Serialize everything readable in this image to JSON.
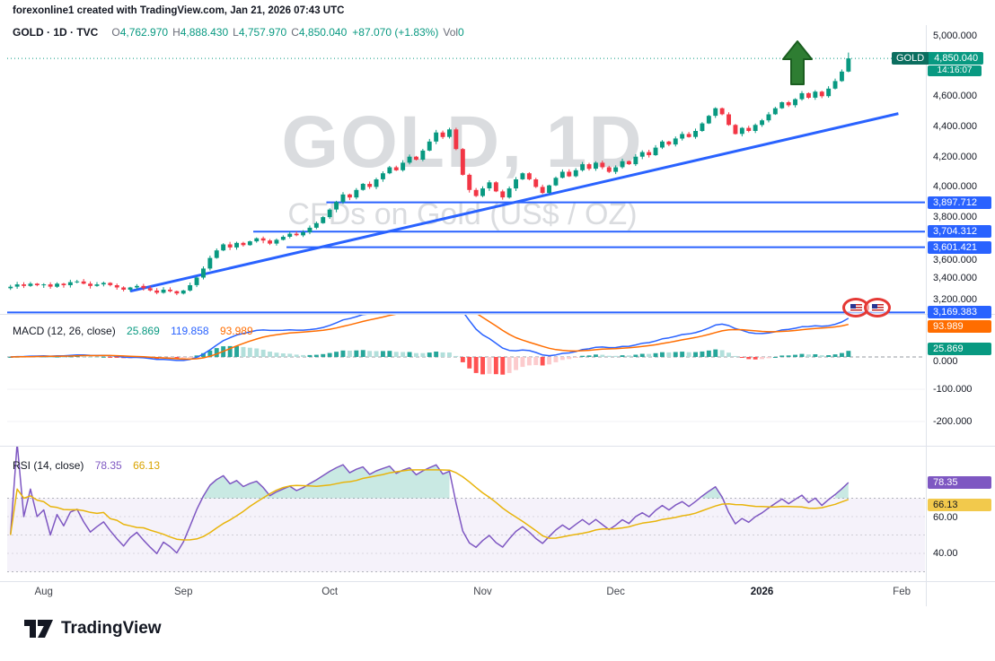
{
  "attribution": "forexonline1 created with TradingView.com, Jan 21, 2026 07:43 UTC",
  "legend": {
    "symbol_title": "GOLD · 1D · TVC",
    "ohlc": [
      {
        "label": "O",
        "value": "4,762.970"
      },
      {
        "label": "H",
        "value": "4,888.430"
      },
      {
        "label": "L",
        "value": "4,757.970"
      },
      {
        "label": "C",
        "value": "4,850.040"
      }
    ],
    "change": "+87.070 (+1.83%)",
    "vol_label": "Vol",
    "vol_value": "0"
  },
  "watermark": {
    "title": "GOLD, 1D",
    "subtitle": "CFDs on Gold (US$ / OZ)"
  },
  "price_scale": {
    "ticks": [
      {
        "v": 5000,
        "label": "5,000.000"
      },
      {
        "v": 4600,
        "label": "4,600.000"
      },
      {
        "v": 4400,
        "label": "4,400.000"
      },
      {
        "v": 4200,
        "label": "4,200.000"
      },
      {
        "v": 4000,
        "label": "4,000.000"
      },
      {
        "v": 3800,
        "label": "3,800.000"
      },
      {
        "v": 3600,
        "label": "3,600.000"
      },
      {
        "v": 3400,
        "label": "3,400.000"
      },
      {
        "v": 3200,
        "label": "3,200.000"
      }
    ],
    "symbol_badge": {
      "name": "GOLD",
      "price": "4,850.040",
      "value": 4850.04,
      "countdown": "14:16:07"
    },
    "level_badges": [
      {
        "label": "3,897.712",
        "value": 3897.712
      },
      {
        "label": "3,704.312",
        "value": 3704.312
      },
      {
        "label": "3,601.421",
        "value": 3601.421
      },
      {
        "label": "3,169.383",
        "value": 3169.383
      }
    ]
  },
  "macd_pane": {
    "title": "MACD (12, 26, close)",
    "hist": "25.869",
    "macd": "119.858",
    "signal": "93.989",
    "ticks": [
      {
        "v": 0,
        "label": "0.000"
      },
      {
        "v": -100,
        "label": "-100.000"
      },
      {
        "v": -200,
        "label": "-200.000"
      }
    ],
    "badges": [
      {
        "label": "93.989",
        "v": 93.989,
        "bg": "#FF6D00",
        "fg": "#ffffff"
      },
      {
        "label": "25.869",
        "v": 25.869,
        "bg": "#089981",
        "fg": "#ffffff"
      }
    ]
  },
  "rsi_pane": {
    "title": "RSI (14, close)",
    "value": "78.35",
    "ma": "66.13",
    "ticks": [
      {
        "v": 60,
        "label": "60.00"
      },
      {
        "v": 40,
        "label": "40.00"
      }
    ],
    "badges": [
      {
        "label": "78.35",
        "v": 78.35,
        "bg": "#7E57C2",
        "fg": "#ffffff"
      },
      {
        "label": "66.13",
        "v": 66.13,
        "bg": "#F2C94C",
        "fg": "#131722"
      }
    ]
  },
  "time_axis": [
    {
      "label": "Aug",
      "slot": 5
    },
    {
      "label": "Sep",
      "slot": 26
    },
    {
      "label": "Oct",
      "slot": 48
    },
    {
      "label": "Nov",
      "slot": 71
    },
    {
      "label": "Dec",
      "slot": 91
    },
    {
      "label": "2026",
      "slot": 113,
      "bold": true
    },
    {
      "label": "Feb",
      "slot": 134
    }
  ],
  "logo_text": "TradingView",
  "colors": {
    "up": "#089981",
    "down": "#F23645",
    "line_blue": "#2962FF",
    "macd_blue": "#2962FF",
    "signal_orange": "#FF6D00",
    "rsi_purple": "#7E57C2",
    "rsi_yellow": "#E8B40B",
    "hist_up": "#26A69A",
    "hist_up_fade": "#B2DFDB",
    "hist_dn": "#FF5252",
    "hist_dn_fade": "#FCCBCD"
  },
  "chart_data": {
    "type": "candlestick",
    "symbol": "GOLD",
    "timeframe": "1D",
    "exchange": "TVC",
    "title": "CFDs on Gold (US$ / OZ)",
    "x_labels": [
      "Aug",
      "Sep",
      "Oct",
      "Nov",
      "Dec",
      "2026",
      "Feb"
    ],
    "y_range": [
      3160,
      5070
    ],
    "slots_total": 138,
    "closes": [
      3340,
      3355,
      3345,
      3360,
      3350,
      3355,
      3340,
      3360,
      3350,
      3370,
      3375,
      3360,
      3345,
      3355,
      3365,
      3350,
      3335,
      3320,
      3335,
      3345,
      3330,
      3315,
      3300,
      3320,
      3310,
      3295,
      3315,
      3350,
      3400,
      3460,
      3530,
      3580,
      3620,
      3600,
      3630,
      3615,
      3640,
      3660,
      3645,
      3625,
      3650,
      3670,
      3690,
      3680,
      3700,
      3730,
      3760,
      3800,
      3850,
      3900,
      3950,
      3930,
      3980,
      4020,
      4000,
      4050,
      4090,
      4130,
      4110,
      4160,
      4200,
      4180,
      4240,
      4300,
      4360,
      4330,
      4380,
      4250,
      4080,
      3980,
      3940,
      3990,
      4030,
      3970,
      3930,
      3990,
      4050,
      4090,
      4050,
      4000,
      3960,
      4010,
      4060,
      4100,
      4070,
      4110,
      4150,
      4120,
      4160,
      4130,
      4100,
      4130,
      4170,
      4150,
      4200,
      4230,
      4210,
      4260,
      4300,
      4280,
      4320,
      4350,
      4330,
      4370,
      4420,
      4470,
      4520,
      4480,
      4410,
      4350,
      4390,
      4370,
      4410,
      4440,
      4480,
      4520,
      4560,
      4540,
      4580,
      4620,
      4590,
      4630,
      4600,
      4650,
      4700,
      4763,
      4850.04
    ],
    "last_candle": {
      "open": 4762.97,
      "high": 4888.43,
      "low": 4757.97,
      "close": 4850.04,
      "change": "+87.070 (+1.83%)"
    },
    "current_price": 4850.04,
    "levels": [
      {
        "price": 3897.712,
        "start_slot": 48
      },
      {
        "price": 3704.312,
        "start_slot": 37
      },
      {
        "price": 3601.421,
        "start_slot": 42
      },
      {
        "price": 3169.383,
        "start_slot": 0
      }
    ],
    "trendline": {
      "from_slot": 18,
      "from_price": 3310,
      "to_slot": 133.5,
      "to_price": 4485
    },
    "indicators": {
      "macd": {
        "params": [
          12,
          26,
          "close"
        ],
        "histogram": 25.869,
        "macd": 119.858,
        "signal": 93.989
      },
      "rsi": {
        "params": [
          14,
          "close"
        ],
        "value": 78.35,
        "ma": 66.13,
        "bands": [
          70,
          50,
          30
        ]
      }
    }
  }
}
